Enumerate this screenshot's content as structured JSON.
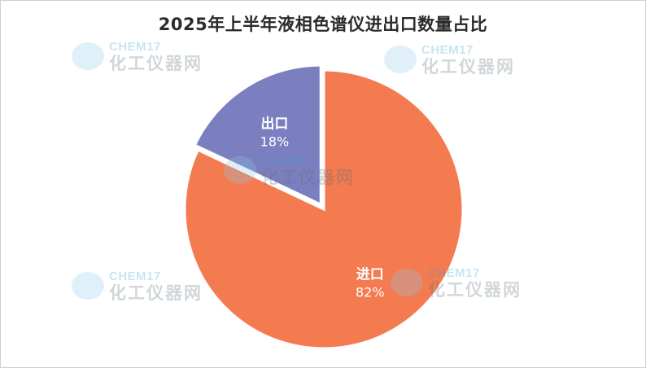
{
  "watermark": {
    "brand": "CHEM17",
    "subtitle": "化工仪器网",
    "logo_color": "#8ec9ea"
  },
  "chart_data": {
    "type": "pie",
    "title": "2025年上半年液相色谱仪进出口数量占比",
    "slices": [
      {
        "label": "出口",
        "value": 18,
        "value_label": "18%",
        "color": "#7b7fc0",
        "exploded": true
      },
      {
        "label": "进口",
        "value": 82,
        "value_label": "82%",
        "color": "#f47a50",
        "exploded": false
      }
    ],
    "start_angle_deg": 0,
    "direction": "counterclockwise",
    "slice_edge_color": "#ffffff",
    "legend": "none"
  }
}
